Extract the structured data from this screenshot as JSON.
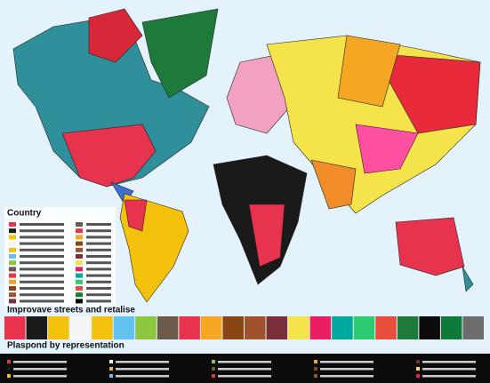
{
  "map": {
    "legend_title": "Country",
    "strip_title": "Improvave streets and retalise",
    "bottom_title": "Plaspond by representation"
  }
}
